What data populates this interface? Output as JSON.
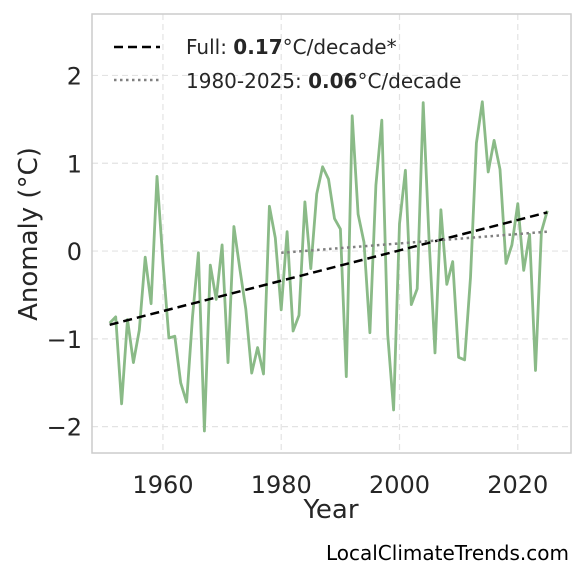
{
  "chart_data": {
    "type": "line",
    "xlabel": "Year",
    "ylabel": "Anomaly (°C)",
    "xlim": [
      1948,
      2029
    ],
    "ylim": [
      -2.3,
      2.7
    ],
    "x_ticks": [
      1960,
      1980,
      2000,
      2020
    ],
    "y_ticks": [
      2,
      1,
      0,
      -1,
      -2
    ],
    "y_tick_labels": [
      "2",
      "1",
      "0",
      "−1",
      "−2"
    ],
    "grid": true,
    "legend_position": "top-left",
    "series": [
      {
        "role": "observed",
        "color": "#8aba87",
        "x": [
          1951,
          1952,
          1953,
          1954,
          1955,
          1956,
          1957,
          1958,
          1959,
          1960,
          1961,
          1962,
          1963,
          1964,
          1965,
          1966,
          1967,
          1968,
          1969,
          1970,
          1971,
          1972,
          1973,
          1974,
          1975,
          1976,
          1977,
          1978,
          1979,
          1980,
          1981,
          1982,
          1983,
          1984,
          1985,
          1986,
          1987,
          1988,
          1989,
          1990,
          1991,
          1992,
          1993,
          1994,
          1995,
          1996,
          1997,
          1998,
          1999,
          2000,
          2001,
          2002,
          2003,
          2004,
          2005,
          2006,
          2007,
          2008,
          2009,
          2010,
          2011,
          2012,
          2013,
          2014,
          2015,
          2016,
          2017,
          2018,
          2019,
          2020,
          2021,
          2022,
          2023,
          2024,
          2025
        ],
        "values": [
          -0.82,
          -0.75,
          -1.74,
          -0.78,
          -1.27,
          -0.9,
          -0.07,
          -0.6,
          0.85,
          -0.13,
          -0.99,
          -0.97,
          -1.5,
          -1.72,
          -0.75,
          -0.02,
          -2.05,
          -0.16,
          -0.55,
          0.07,
          -1.27,
          0.28,
          -0.2,
          -0.66,
          -1.39,
          -1.1,
          -1.4,
          0.51,
          0.15,
          -0.67,
          0.22,
          -0.91,
          -0.73,
          0.56,
          -0.2,
          0.65,
          0.96,
          0.82,
          0.37,
          0.25,
          -1.43,
          1.54,
          0.42,
          0.1,
          -0.93,
          0.75,
          1.49,
          -0.95,
          -1.81,
          0.31,
          0.92,
          -0.61,
          -0.43,
          1.69,
          0.12,
          -1.16,
          0.47,
          -0.38,
          -0.12,
          -1.21,
          -1.24,
          -0.3,
          1.23,
          1.7,
          0.9,
          1.26,
          0.93,
          -0.14,
          0.07,
          0.54,
          -0.22,
          0.19,
          -1.36,
          0.22,
          0.46
        ]
      },
      {
        "role": "trend-full",
        "name": "Full",
        "color": "#000000",
        "x": [
          1951,
          2025
        ],
        "values": [
          -0.84,
          0.44
        ]
      },
      {
        "role": "trend-1980",
        "name": "1980-2025",
        "color": "#808080",
        "x": [
          1980,
          2025
        ],
        "values": [
          -0.02,
          0.22
        ]
      }
    ]
  },
  "legend": {
    "full": {
      "prefix": "Full: ",
      "value": "0.17",
      "suffix": "°C/decade*"
    },
    "recent": {
      "prefix": "1980-2025: ",
      "value": "0.06",
      "suffix": "°C/decade"
    }
  },
  "source": "LocalClimateTrends.com"
}
